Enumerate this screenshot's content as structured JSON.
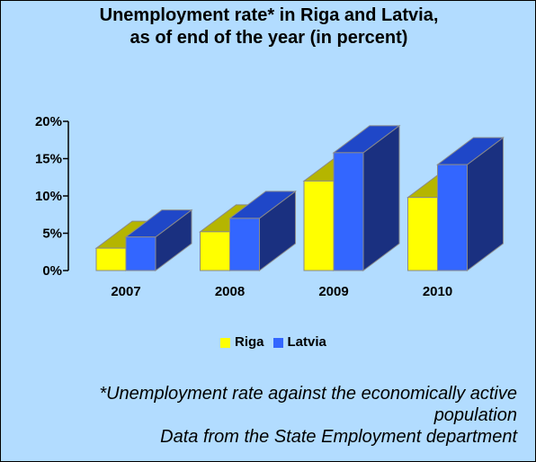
{
  "header": {
    "title_line1": "Unemployment rate* in Riga and Latvia,",
    "title_line2": "as of end of the year (in percent)"
  },
  "chart_data": {
    "type": "bar",
    "three_d": true,
    "categories": [
      "2007",
      "2008",
      "2009",
      "2010"
    ],
    "series": [
      {
        "name": "Riga",
        "values": [
          3.0,
          5.2,
          12.0,
          9.8
        ],
        "color": "#ffff00",
        "top_color": "#b5b500"
      },
      {
        "name": "Latvia",
        "values": [
          4.5,
          7.0,
          15.8,
          14.2
        ],
        "color": "#3366ff",
        "side_color": "#1a3080",
        "top_color": "#1f47c8"
      }
    ],
    "ylim": [
      0,
      20
    ],
    "y_ticks": [
      "0%",
      "5%",
      "10%",
      "15%",
      "20%"
    ],
    "y_tick_values": [
      0,
      5,
      10,
      15,
      20
    ],
    "grid": false,
    "legend_position": "bottom"
  },
  "legend": {
    "riga_label": "Riga",
    "latvia_label": "Latvia"
  },
  "footnote": {
    "line1": "*Unemployment rate against the economically active",
    "line2": "population",
    "line3": "Data from the State Employment department"
  },
  "colors": {
    "background": "#b2dcff",
    "riga": "#ffff00",
    "latvia": "#3366ff"
  }
}
